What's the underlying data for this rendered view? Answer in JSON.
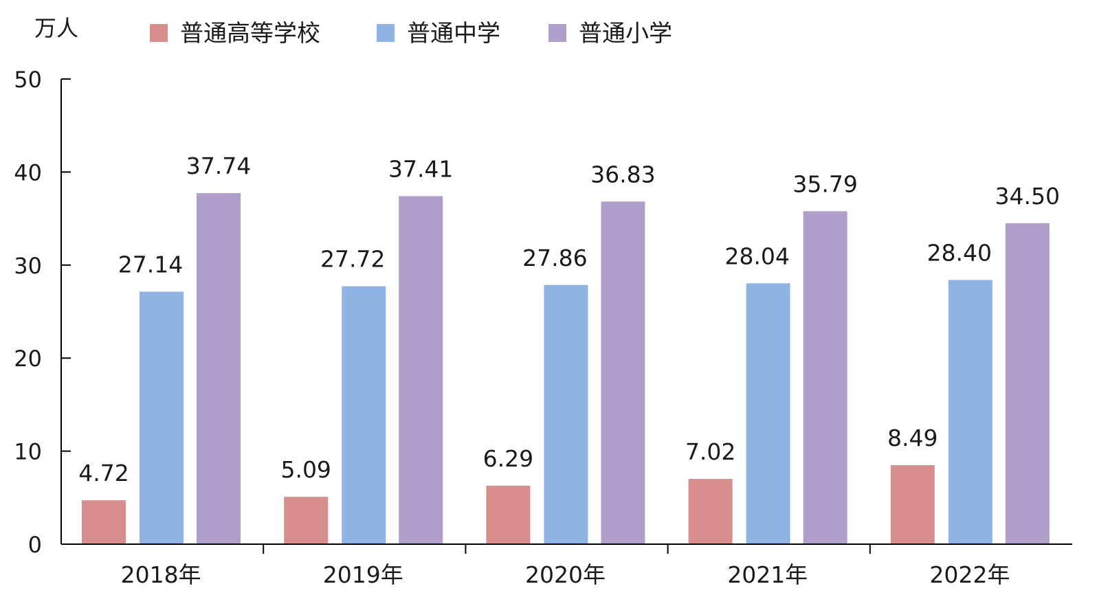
{
  "chart_data": {
    "type": "bar",
    "ylabel": "万人",
    "categories": [
      "2018年",
      "2019年",
      "2020年",
      "2021年",
      "2022年"
    ],
    "series": [
      {
        "name": "普通高等学校",
        "color": "#d98e8e",
        "values": [
          4.72,
          5.09,
          6.29,
          7.02,
          8.49
        ]
      },
      {
        "name": "普通中学",
        "color": "#8fb3e2",
        "values": [
          27.14,
          27.72,
          27.86,
          28.04,
          28.4
        ]
      },
      {
        "name": "普通小学",
        "color": "#b09fca",
        "values": [
          37.74,
          37.41,
          36.83,
          35.79,
          34.5
        ]
      }
    ],
    "data_labels": [
      [
        "4.72",
        "5.09",
        "6.29",
        "7.02",
        "8.49"
      ],
      [
        "27.14",
        "27.72",
        "27.86",
        "28.04",
        "28.40"
      ],
      [
        "37.74",
        "37.41",
        "36.83",
        "35.79",
        "34.50"
      ]
    ],
    "ylim": [
      0,
      50
    ],
    "yticks": [
      "0",
      "10",
      "20",
      "30",
      "40",
      "50"
    ],
    "grid": false,
    "legend": "top"
  }
}
